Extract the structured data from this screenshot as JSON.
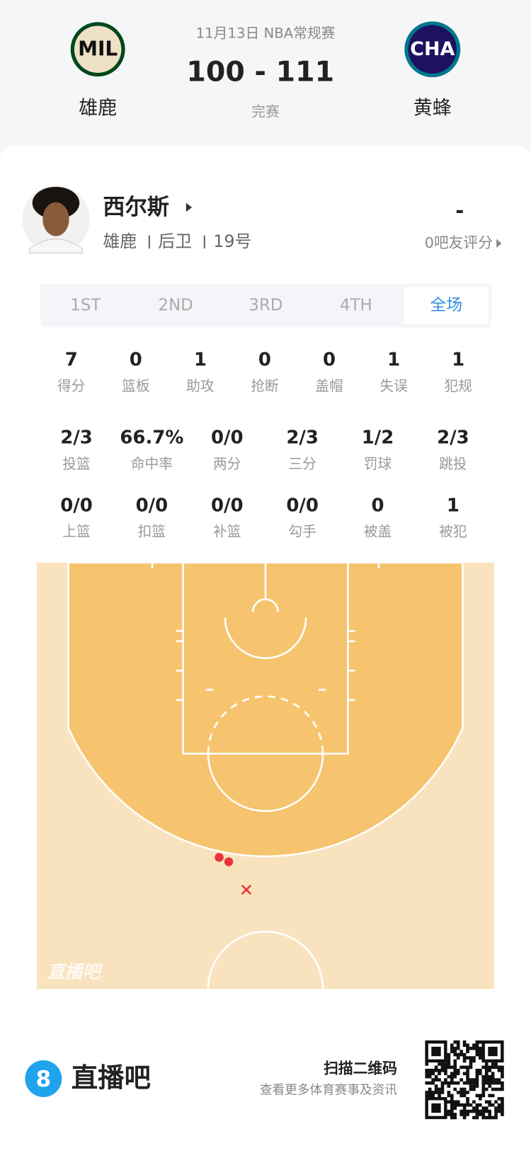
{
  "header": {
    "date_league": "11月13日 NBA常规赛",
    "score": "100 - 111",
    "status": "完赛",
    "home": {
      "logo": "MIL",
      "name": "雄鹿"
    },
    "away": {
      "logo": "CHA",
      "name": "黄蜂"
    }
  },
  "player": {
    "name": "西尔斯",
    "team": "雄鹿",
    "position": "后卫",
    "number": "19号",
    "rating": "-",
    "rating_count": "0吧友评分"
  },
  "tabs": [
    "1ST",
    "2ND",
    "3RD",
    "4TH",
    "全场"
  ],
  "active_tab": 4,
  "stats": [
    [
      {
        "value": "7",
        "label": "得分"
      },
      {
        "value": "0",
        "label": "篮板"
      },
      {
        "value": "1",
        "label": "助攻"
      },
      {
        "value": "0",
        "label": "抢断"
      },
      {
        "value": "0",
        "label": "盖帽"
      },
      {
        "value": "1",
        "label": "失误"
      },
      {
        "value": "1",
        "label": "犯规"
      }
    ],
    [
      {
        "value": "2/3",
        "label": "投篮"
      },
      {
        "value": "66.7%",
        "label": "命中率"
      },
      {
        "value": "0/0",
        "label": "两分"
      },
      {
        "value": "2/3",
        "label": "三分"
      },
      {
        "value": "1/2",
        "label": "罚球"
      },
      {
        "value": "2/3",
        "label": "跳投"
      }
    ],
    [
      {
        "value": "0/0",
        "label": "上篮"
      },
      {
        "value": "0/0",
        "label": "扣篮"
      },
      {
        "value": "0/0",
        "label": "补篮"
      },
      {
        "value": "0/0",
        "label": "勾手"
      },
      {
        "value": "0",
        "label": "被盖"
      },
      {
        "value": "1",
        "label": "被犯"
      }
    ]
  ],
  "court_watermark": "直播吧",
  "footer": {
    "brand_icon": "8",
    "brand": "直播吧",
    "scan": "扫描二维码",
    "subtitle": "查看更多体育赛事及资讯"
  }
}
